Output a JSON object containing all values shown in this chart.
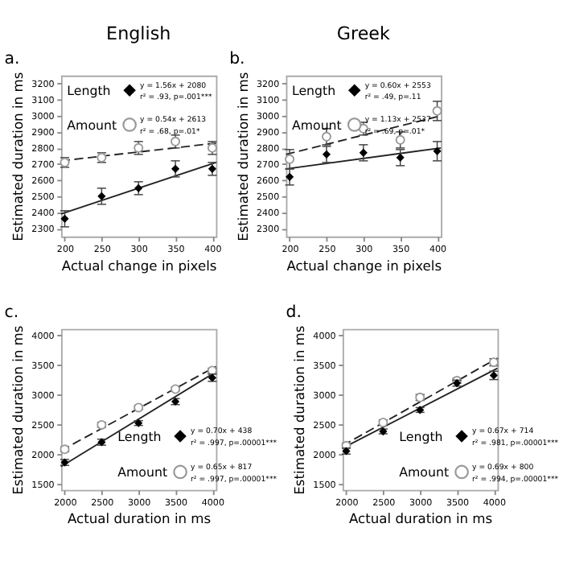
{
  "chart_data": [
    {
      "type": "scatter",
      "title": "English",
      "xlabel": "Actual change in pixels",
      "ylabel": "Estimated duration in ms",
      "xlim": [
        195,
        405
      ],
      "xticks": [
        200,
        250,
        300,
        350,
        400
      ],
      "ylim": [
        2250,
        3250
      ],
      "yticks": [
        2300,
        2400,
        2500,
        2600,
        2700,
        2800,
        2900,
        3000,
        3100,
        3200
      ],
      "grid": false,
      "legend": "top left",
      "annotations": [
        "a.",
        "y = 1.56x + 2080",
        "r² = .93, p=.001***",
        "y = 0.54x + 2613",
        "r² = .68, p=.01*"
      ],
      "x": [
        200,
        250,
        300,
        350,
        400
      ],
      "series": [
        {
          "type": "line",
          "x": [
            195,
            405
          ],
          "values": [
            2390,
            2710
          ],
          "color": "#222222",
          "line_style": "solid"
        },
        {
          "type": "line",
          "x": [
            195,
            405
          ],
          "values": [
            2720,
            2830
          ],
          "color": "#222222",
          "line_style": "dashed"
        },
        {
          "name": "Length",
          "color": "#000000",
          "marker": "diamond",
          "values": [
            2360,
            2500,
            2550,
            2670,
            2670
          ],
          "errors": [
            50,
            50,
            40,
            50,
            40
          ]
        },
        {
          "name": "Amount",
          "color": "#999999",
          "marker": "circle",
          "values": [
            2710,
            2740,
            2800,
            2840,
            2800
          ],
          "errors": [
            30,
            30,
            40,
            40,
            40
          ]
        }
      ]
    },
    {
      "type": "scatter",
      "title": "Greek",
      "xlabel": "Actual change in pixels",
      "ylabel": "Estimated duration in ms",
      "xlim": [
        195,
        405
      ],
      "xticks": [
        200,
        250,
        300,
        350,
        400
      ],
      "ylim": [
        2250,
        3250
      ],
      "yticks": [
        2300,
        2400,
        2500,
        2600,
        2700,
        2800,
        2900,
        3000,
        3100,
        3200
      ],
      "grid": false,
      "legend": "top left",
      "annotations": [
        "b.",
        "y = 0.60x + 2553",
        "r² = .49, p=.11",
        "y = 1.13x + 2537",
        "r² = .69, p=.01*"
      ],
      "x": [
        200,
        250,
        300,
        350,
        400
      ],
      "series": [
        {
          "type": "line",
          "x": [
            195,
            405
          ],
          "values": [
            2670,
            2800
          ],
          "color": "#222222",
          "line_style": "solid"
        },
        {
          "type": "line",
          "x": [
            195,
            405
          ],
          "values": [
            2760,
            3000
          ],
          "color": "#222222",
          "line_style": "dashed"
        },
        {
          "name": "Length",
          "color": "#000000",
          "marker": "diamond",
          "values": [
            2620,
            2760,
            2770,
            2740,
            2780
          ],
          "errors": [
            50,
            50,
            50,
            50,
            60
          ]
        },
        {
          "name": "Amount",
          "color": "#999999",
          "marker": "circle",
          "values": [
            2730,
            2870,
            2920,
            2850,
            3030
          ],
          "errors": [
            60,
            50,
            40,
            50,
            60
          ]
        }
      ]
    },
    {
      "type": "scatter",
      "xlabel": "Actual duration in ms",
      "ylabel": "Estimated duration in ms",
      "xlim": [
        1950,
        4050
      ],
      "xticks": [
        2000,
        2500,
        3000,
        3500,
        4000
      ],
      "ylim": [
        1400,
        4100
      ],
      "yticks": [
        1500,
        2000,
        2500,
        3000,
        3500,
        4000
      ],
      "grid": false,
      "legend": "bottom right",
      "annotations": [
        "c.",
        "y = 0.70x + 438",
        "r² = .997, p=.00001***",
        "y = 0.65x + 817",
        "r² = .997, p=.00001***"
      ],
      "x": [
        2000,
        2500,
        3000,
        3500,
        4000
      ],
      "series": [
        {
          "type": "line",
          "x": [
            1950,
            4050
          ],
          "values": [
            1790,
            3380
          ],
          "color": "#222222",
          "line_style": "solid"
        },
        {
          "type": "line",
          "x": [
            1950,
            4050
          ],
          "values": [
            2060,
            3470
          ],
          "color": "#222222",
          "line_style": "dashed"
        },
        {
          "name": "Length",
          "color": "#000000",
          "marker": "diamond",
          "values": [
            1860,
            2200,
            2520,
            2880,
            3280
          ],
          "errors": [
            50,
            50,
            40,
            50,
            60
          ]
        },
        {
          "name": "Amount",
          "color": "#999999",
          "marker": "circle",
          "values": [
            2080,
            2490,
            2780,
            3090,
            3400
          ],
          "errors": [
            40,
            40,
            30,
            30,
            40
          ]
        }
      ]
    },
    {
      "type": "scatter",
      "xlabel": "Actual duration in ms",
      "ylabel": "Estimated duration in ms",
      "xlim": [
        1950,
        4050
      ],
      "xticks": [
        2000,
        2500,
        3000,
        3500,
        4000
      ],
      "ylim": [
        1400,
        4100
      ],
      "yticks": [
        1500,
        2000,
        2500,
        3000,
        3500,
        4000
      ],
      "grid": false,
      "legend": "bottom right",
      "annotations": [
        "d.",
        "y = 0.67x + 714",
        "r² = .981, p=.00001***",
        "y = 0.69x + 800",
        "r² = .994, p=.00001***"
      ],
      "x": [
        2000,
        2500,
        3000,
        3500,
        4000
      ],
      "series": [
        {
          "type": "line",
          "x": [
            1950,
            4050
          ],
          "values": [
            2100,
            3440
          ],
          "color": "#222222",
          "line_style": "solid"
        },
        {
          "type": "line",
          "x": [
            1950,
            4050
          ],
          "values": [
            2140,
            3610
          ],
          "color": "#222222",
          "line_style": "dashed"
        },
        {
          "name": "Length",
          "color": "#000000",
          "marker": "diamond",
          "values": [
            2050,
            2380,
            2740,
            3190,
            3320
          ],
          "errors": [
            50,
            40,
            40,
            50,
            70
          ]
        },
        {
          "name": "Amount",
          "color": "#999999",
          "marker": "circle",
          "values": [
            2140,
            2530,
            2950,
            3230,
            3540
          ],
          "errors": [
            40,
            40,
            50,
            40,
            60
          ]
        }
      ]
    }
  ]
}
